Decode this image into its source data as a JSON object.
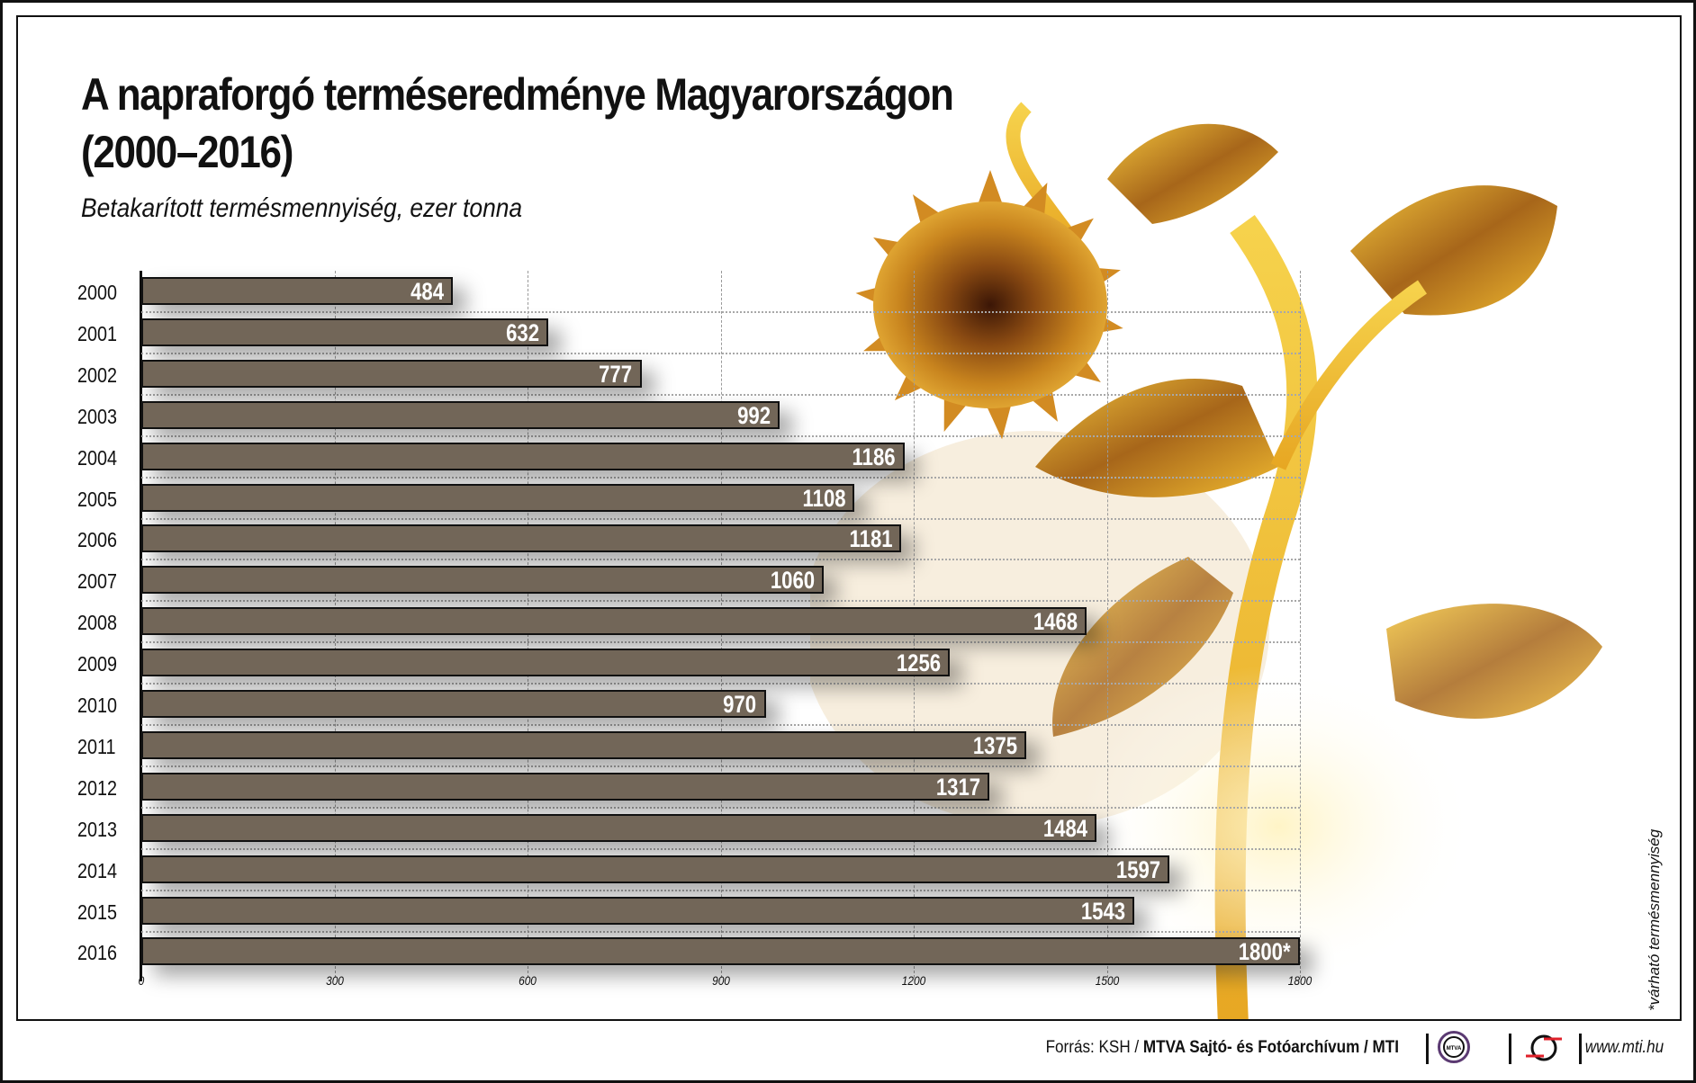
{
  "title_line1": "A napraforgó terméseredménye Magyarországon",
  "title_line2": "(2000–2016)",
  "subtitle": "Betakarított termésmennyiség, ezer tonna",
  "note": "*várható termésmennyiség",
  "footer": {
    "source_prefix": "Forrás: KSH / ",
    "source_bold": "MTVA Sajtó- és Fotóarchívum / MTI",
    "mtva_logo_text": "MTVA",
    "url": "www.mti.hu"
  },
  "colors": {
    "bar": "#726658",
    "bar_border": "#111111",
    "value_text": "#ffffff",
    "mtva_ring": "#5b3a72",
    "mti_red": "#e0202a"
  },
  "rows": [
    {
      "year": "2000",
      "label": "484"
    },
    {
      "year": "2001",
      "label": "632"
    },
    {
      "year": "2002",
      "label": "777"
    },
    {
      "year": "2003",
      "label": "992"
    },
    {
      "year": "2004",
      "label": "1186"
    },
    {
      "year": "2005",
      "label": "1108"
    },
    {
      "year": "2006",
      "label": "1181"
    },
    {
      "year": "2007",
      "label": "1060"
    },
    {
      "year": "2008",
      "label": "1468"
    },
    {
      "year": "2009",
      "label": "1256"
    },
    {
      "year": "2010",
      "label": "970"
    },
    {
      "year": "2011",
      "label": "1375"
    },
    {
      "year": "2012",
      "label": "1317"
    },
    {
      "year": "2013",
      "label": "1484"
    },
    {
      "year": "2014",
      "label": "1597"
    },
    {
      "year": "2015",
      "label": "1543"
    },
    {
      "year": "2016",
      "label": "1800*"
    }
  ],
  "ticks": [
    "0",
    "300",
    "600",
    "900",
    "1200",
    "1500",
    "1800"
  ],
  "chart_data": {
    "type": "bar",
    "orientation": "horizontal",
    "title": "A napraforgó terméseredménye Magyarországon (2000–2016)",
    "subtitle": "Betakarított termésmennyiség, ezer tonna",
    "categories": [
      "2000",
      "2001",
      "2002",
      "2003",
      "2004",
      "2005",
      "2006",
      "2007",
      "2008",
      "2009",
      "2010",
      "2011",
      "2012",
      "2013",
      "2014",
      "2015",
      "2016"
    ],
    "values": [
      484,
      632,
      777,
      992,
      1186,
      1108,
      1181,
      1060,
      1468,
      1256,
      970,
      1375,
      1317,
      1484,
      1597,
      1543,
      1800
    ],
    "xlabel": "",
    "ylabel": "",
    "xlim": [
      0,
      1800
    ],
    "xticks": [
      0,
      300,
      600,
      900,
      1200,
      1500,
      1800
    ],
    "grid": true,
    "legend": "none",
    "annotations": [
      "2016 value marked with * = várható termésmennyiség (expected yield)"
    ],
    "source": "Forrás: KSH / MTVA Sajtó- és Fotóarchívum / MTI"
  }
}
